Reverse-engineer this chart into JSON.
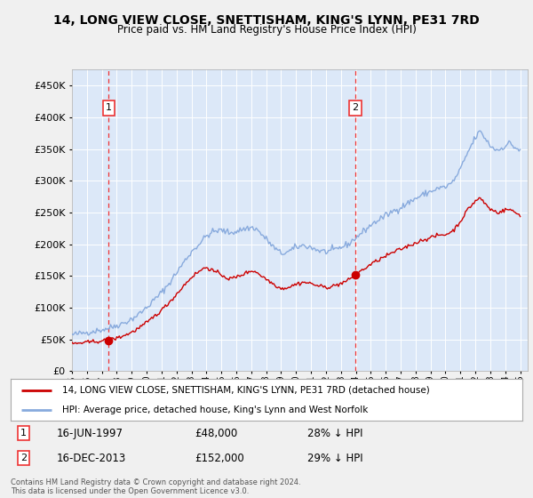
{
  "title": "14, LONG VIEW CLOSE, SNETTISHAM, KING'S LYNN, PE31 7RD",
  "subtitle": "Price paid vs. HM Land Registry's House Price Index (HPI)",
  "background_color": "#f0f0f0",
  "plot_bg_color": "#dce8f8",
  "grid_color": "#ffffff",
  "sale1_price": 48000,
  "sale1_label": "16-JUN-1997",
  "sale1_hpi_pct": "28% ↓ HPI",
  "sale1_year": 1997.46,
  "sale2_price": 152000,
  "sale2_label": "16-DEC-2013",
  "sale2_hpi_pct": "29% ↓ HPI",
  "sale2_year": 2013.96,
  "red_line_color": "#cc0000",
  "blue_line_color": "#88aadd",
  "dashed_color": "#ee3333",
  "legend_label_red": "14, LONG VIEW CLOSE, SNETTISHAM, KING'S LYNN, PE31 7RD (detached house)",
  "legend_label_blue": "HPI: Average price, detached house, King's Lynn and West Norfolk",
  "footer": "Contains HM Land Registry data © Crown copyright and database right 2024.\nThis data is licensed under the Open Government Licence v3.0.",
  "ylim": [
    0,
    475000
  ],
  "yticks": [
    0,
    50000,
    100000,
    150000,
    200000,
    250000,
    300000,
    350000,
    400000,
    450000
  ],
  "xstart": 1995.0,
  "xend": 2025.5
}
